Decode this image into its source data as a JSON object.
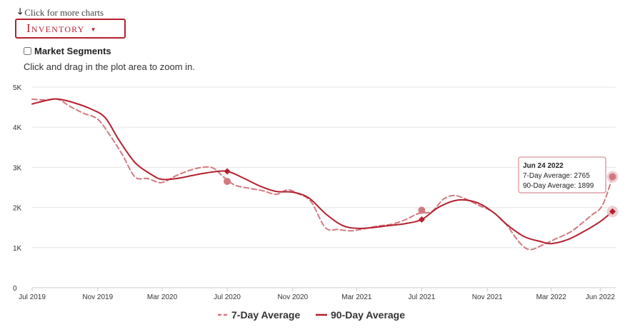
{
  "header": {
    "more_charts": "Click for more charts",
    "dropdown_label": "Inventory",
    "segments_label": "Market Segments",
    "segments_checked": false,
    "zoom_hint": "Click and drag in the plot area to zoom in."
  },
  "colors": {
    "accent": "#b5202e",
    "seven_day": "#d27a80",
    "ninety_day": "#b5202e",
    "grid": "#e6e6e6"
  },
  "chart_data": {
    "type": "line",
    "title": "",
    "xlabel": "",
    "ylabel": "",
    "ylim": [
      0,
      5000
    ],
    "y_ticks": [
      {
        "value": 0,
        "label": "0"
      },
      {
        "value": 1000,
        "label": "1K"
      },
      {
        "value": 2000,
        "label": "2K"
      },
      {
        "value": 3000,
        "label": "3K"
      },
      {
        "value": 4000,
        "label": "4K"
      },
      {
        "value": 5000,
        "label": "5K"
      }
    ],
    "xlim": [
      "2019-07-01",
      "2022-06-30"
    ],
    "x_ticks": [
      {
        "date": "2019-07-01",
        "label": "Jul 2019"
      },
      {
        "date": "2019-11-01",
        "label": "Nov 2019"
      },
      {
        "date": "2020-03-01",
        "label": "Mar 2020"
      },
      {
        "date": "2020-07-01",
        "label": "Jul 2020"
      },
      {
        "date": "2020-11-01",
        "label": "Nov 2020"
      },
      {
        "date": "2021-03-01",
        "label": "Mar 2021"
      },
      {
        "date": "2021-07-01",
        "label": "Jul 2021"
      },
      {
        "date": "2021-11-01",
        "label": "Nov 2021"
      },
      {
        "date": "2022-03-01",
        "label": "Mar 2022"
      },
      {
        "date": "2022-06-01",
        "label": "Jun 2022"
      }
    ],
    "grid": true,
    "legend_position": "bottom-center",
    "series": [
      {
        "name": "7-Day Average",
        "style": "dashed",
        "points": [
          [
            "2019-07-01",
            4700
          ],
          [
            "2019-07-25",
            4680
          ],
          [
            "2019-08-18",
            4700
          ],
          [
            "2019-09-10",
            4520
          ],
          [
            "2019-10-05",
            4350
          ],
          [
            "2019-11-01",
            4200
          ],
          [
            "2019-11-25",
            3780
          ],
          [
            "2019-12-18",
            3300
          ],
          [
            "2020-01-10",
            2760
          ],
          [
            "2020-02-03",
            2720
          ],
          [
            "2020-02-28",
            2620
          ],
          [
            "2020-03-25",
            2780
          ],
          [
            "2020-04-20",
            2920
          ],
          [
            "2020-05-15",
            3000
          ],
          [
            "2020-06-05",
            2980
          ],
          [
            "2020-06-25",
            2750
          ],
          [
            "2020-07-15",
            2560
          ],
          [
            "2020-08-10",
            2480
          ],
          [
            "2020-09-05",
            2420
          ],
          [
            "2020-10-01",
            2330
          ],
          [
            "2020-10-22",
            2440
          ],
          [
            "2020-11-10",
            2350
          ],
          [
            "2020-12-05",
            2150
          ],
          [
            "2021-01-01",
            1500
          ],
          [
            "2021-01-25",
            1450
          ],
          [
            "2021-02-20",
            1420
          ],
          [
            "2021-03-15",
            1470
          ],
          [
            "2021-04-10",
            1540
          ],
          [
            "2021-05-05",
            1580
          ],
          [
            "2021-06-01",
            1700
          ],
          [
            "2021-06-25",
            1850
          ],
          [
            "2021-07-20",
            1900
          ],
          [
            "2021-08-10",
            2200
          ],
          [
            "2021-08-30",
            2300
          ],
          [
            "2021-09-20",
            2220
          ],
          [
            "2021-10-15",
            2060
          ],
          [
            "2021-11-10",
            1900
          ],
          [
            "2021-12-05",
            1600
          ],
          [
            "2022-01-01",
            1120
          ],
          [
            "2022-01-20",
            950
          ],
          [
            "2022-02-15",
            1080
          ],
          [
            "2022-03-10",
            1220
          ],
          [
            "2022-04-05",
            1380
          ],
          [
            "2022-04-25",
            1580
          ],
          [
            "2022-05-15",
            1800
          ],
          [
            "2022-06-05",
            2050
          ],
          [
            "2022-06-24",
            2765
          ]
        ]
      },
      {
        "name": "90-Day Average",
        "style": "solid",
        "points": [
          [
            "2019-07-01",
            4580
          ],
          [
            "2019-08-01",
            4680
          ],
          [
            "2019-08-20",
            4700
          ],
          [
            "2019-09-20",
            4600
          ],
          [
            "2019-10-20",
            4450
          ],
          [
            "2019-11-15",
            4240
          ],
          [
            "2019-12-10",
            3700
          ],
          [
            "2020-01-10",
            3120
          ],
          [
            "2020-02-10",
            2820
          ],
          [
            "2020-03-01",
            2700
          ],
          [
            "2020-04-01",
            2730
          ],
          [
            "2020-05-01",
            2810
          ],
          [
            "2020-06-01",
            2880
          ],
          [
            "2020-07-01",
            2900
          ],
          [
            "2020-08-01",
            2730
          ],
          [
            "2020-09-01",
            2530
          ],
          [
            "2020-10-01",
            2400
          ],
          [
            "2020-11-01",
            2380
          ],
          [
            "2020-12-01",
            2240
          ],
          [
            "2021-01-01",
            1850
          ],
          [
            "2021-02-01",
            1560
          ],
          [
            "2021-03-01",
            1480
          ],
          [
            "2021-04-01",
            1500
          ],
          [
            "2021-05-01",
            1550
          ],
          [
            "2021-06-01",
            1600
          ],
          [
            "2021-07-01",
            1700
          ],
          [
            "2021-08-01",
            2000
          ],
          [
            "2021-09-01",
            2170
          ],
          [
            "2021-09-25",
            2180
          ],
          [
            "2021-10-20",
            2080
          ],
          [
            "2021-11-15",
            1850
          ],
          [
            "2021-12-10",
            1550
          ],
          [
            "2022-01-10",
            1270
          ],
          [
            "2022-02-10",
            1150
          ],
          [
            "2022-03-01",
            1100
          ],
          [
            "2022-04-01",
            1200
          ],
          [
            "2022-05-01",
            1400
          ],
          [
            "2022-06-01",
            1650
          ],
          [
            "2022-06-24",
            1899
          ]
        ]
      }
    ],
    "highlighted_points": [
      {
        "series": "7-Day Average",
        "date": "2020-07-01",
        "value": 2650
      },
      {
        "series": "90-Day Average",
        "date": "2020-07-01",
        "value": 2900
      },
      {
        "series": "7-Day Average",
        "date": "2021-07-01",
        "value": 1930
      },
      {
        "series": "90-Day Average",
        "date": "2021-07-01",
        "value": 1700
      },
      {
        "series": "7-Day Average",
        "date": "2022-06-24",
        "value": 2765
      },
      {
        "series": "90-Day Average",
        "date": "2022-06-24",
        "value": 1899
      }
    ],
    "tooltip": {
      "title": "Jun 24 2022",
      "line1": "7-Day Average: 2765",
      "line2": "90-Day Average: 1899"
    }
  }
}
